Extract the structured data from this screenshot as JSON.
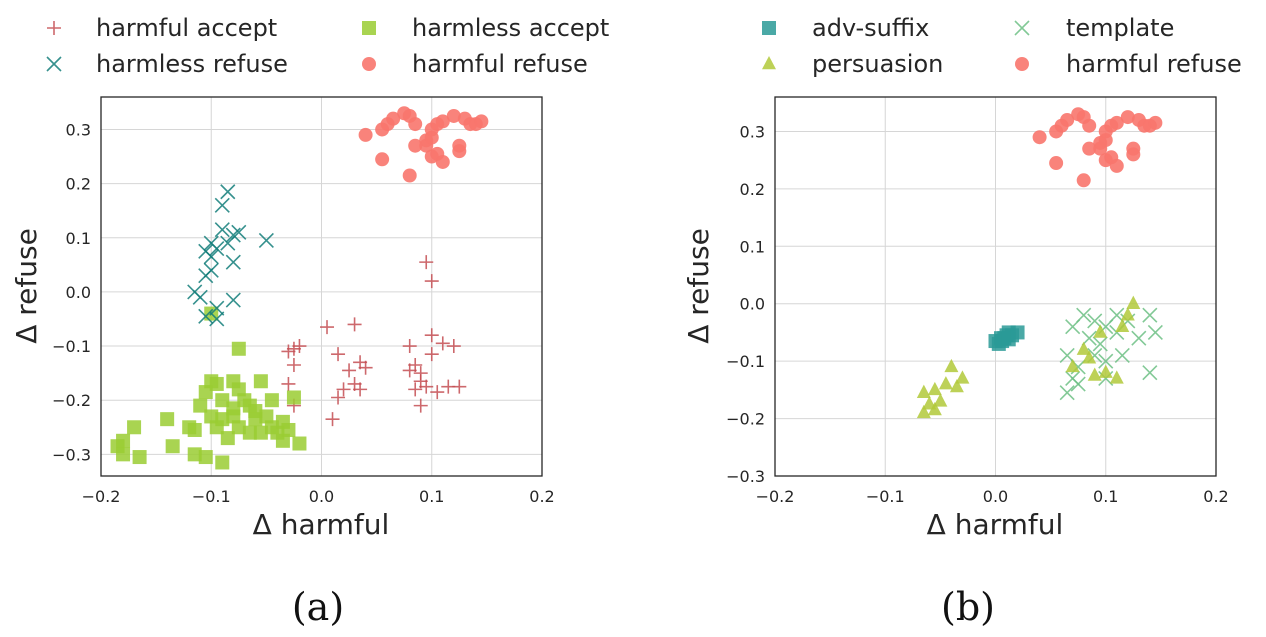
{
  "colors": {
    "harmful_accept": "#c44e52",
    "harmless_refuse": "#137e7a",
    "harmless_accept": "#9acd32",
    "harmful_refuse": "#f8766d",
    "adv_suffix": "#2a9a96",
    "persuasion": "#b2c93a",
    "template": "#6cbf84"
  },
  "chart_data": [
    {
      "type": "scatter",
      "caption": "(a)",
      "xlabel": "Δ harmful",
      "ylabel": "Δ refuse",
      "xlim": [
        -0.2,
        0.2
      ],
      "ylim": [
        -0.34,
        0.36
      ],
      "xticks": [
        -0.2,
        -0.1,
        0.0,
        0.1,
        0.2
      ],
      "xtick_labels": [
        "−0.2",
        "−0.1",
        "0.0",
        "0.1",
        "0.2"
      ],
      "yticks": [
        -0.3,
        -0.2,
        -0.1,
        0.0,
        0.1,
        0.2,
        0.3
      ],
      "ytick_labels": [
        "−0.3",
        "−0.2",
        "−0.1",
        "0.0",
        "0.1",
        "0.2",
        "0.3"
      ],
      "grid": true,
      "legend_position": "top, above plot, 2 columns",
      "series": [
        {
          "name": "harmful accept",
          "marker": "plus",
          "color": "#c44e52",
          "points": [
            [
              0.095,
              0.055
            ],
            [
              0.1,
              0.02
            ],
            [
              -0.03,
              -0.11
            ],
            [
              -0.025,
              -0.105
            ],
            [
              -0.02,
              -0.1
            ],
            [
              -0.025,
              -0.135
            ],
            [
              -0.03,
              -0.17
            ],
            [
              -0.025,
              -0.21
            ],
            [
              0.005,
              -0.065
            ],
            [
              0.03,
              -0.06
            ],
            [
              0.015,
              -0.115
            ],
            [
              0.035,
              -0.13
            ],
            [
              0.04,
              -0.14
            ],
            [
              0.025,
              -0.145
            ],
            [
              0.03,
              -0.17
            ],
            [
              0.035,
              -0.18
            ],
            [
              0.02,
              -0.18
            ],
            [
              0.015,
              -0.195
            ],
            [
              0.01,
              -0.235
            ],
            [
              0.08,
              -0.1
            ],
            [
              0.1,
              -0.08
            ],
            [
              0.1,
              -0.115
            ],
            [
              0.11,
              -0.095
            ],
            [
              0.12,
              -0.1
            ],
            [
              0.085,
              -0.135
            ],
            [
              0.09,
              -0.15
            ],
            [
              0.08,
              -0.145
            ],
            [
              0.09,
              -0.165
            ],
            [
              0.095,
              -0.175
            ],
            [
              0.085,
              -0.18
            ],
            [
              0.105,
              -0.185
            ],
            [
              0.115,
              -0.175
            ],
            [
              0.125,
              -0.175
            ],
            [
              0.09,
              -0.21
            ]
          ]
        },
        {
          "name": "harmless accept",
          "marker": "square",
          "color": "#9acd32",
          "points": [
            [
              -0.1,
              -0.04
            ],
            [
              -0.075,
              -0.105
            ],
            [
              -0.105,
              -0.185
            ],
            [
              -0.1,
              -0.165
            ],
            [
              -0.095,
              -0.17
            ],
            [
              -0.09,
              -0.2
            ],
            [
              -0.08,
              -0.165
            ],
            [
              -0.075,
              -0.18
            ],
            [
              -0.07,
              -0.2
            ],
            [
              -0.065,
              -0.21
            ],
            [
              -0.055,
              -0.165
            ],
            [
              -0.045,
              -0.2
            ],
            [
              -0.025,
              -0.195
            ],
            [
              -0.11,
              -0.21
            ],
            [
              -0.1,
              -0.23
            ],
            [
              -0.09,
              -0.235
            ],
            [
              -0.08,
              -0.23
            ],
            [
              -0.075,
              -0.25
            ],
            [
              -0.06,
              -0.235
            ],
            [
              -0.05,
              -0.23
            ],
            [
              -0.045,
              -0.25
            ],
            [
              -0.035,
              -0.24
            ],
            [
              -0.03,
              -0.255
            ],
            [
              -0.115,
              -0.255
            ],
            [
              -0.095,
              -0.25
            ],
            [
              -0.085,
              -0.27
            ],
            [
              -0.065,
              -0.26
            ],
            [
              -0.055,
              -0.26
            ],
            [
              -0.04,
              -0.26
            ],
            [
              -0.035,
              -0.275
            ],
            [
              -0.02,
              -0.28
            ],
            [
              -0.14,
              -0.235
            ],
            [
              -0.135,
              -0.285
            ],
            [
              -0.12,
              -0.25
            ],
            [
              -0.115,
              -0.3
            ],
            [
              -0.105,
              -0.305
            ],
            [
              -0.09,
              -0.315
            ],
            [
              -0.165,
              -0.305
            ],
            [
              -0.18,
              -0.3
            ],
            [
              -0.18,
              -0.275
            ],
            [
              -0.185,
              -0.285
            ],
            [
              -0.17,
              -0.25
            ],
            [
              -0.08,
              -0.215
            ],
            [
              -0.06,
              -0.22
            ]
          ]
        },
        {
          "name": "harmless refuse",
          "marker": "x",
          "color": "#137e7a",
          "points": [
            [
              -0.085,
              0.185
            ],
            [
              -0.09,
              0.16
            ],
            [
              -0.09,
              0.115
            ],
            [
              -0.08,
              0.105
            ],
            [
              -0.075,
              0.11
            ],
            [
              -0.085,
              0.09
            ],
            [
              -0.095,
              0.08
            ],
            [
              -0.1,
              0.09
            ],
            [
              -0.1,
              0.065
            ],
            [
              -0.105,
              0.075
            ],
            [
              -0.1,
              0.04
            ],
            [
              -0.105,
              0.03
            ],
            [
              -0.08,
              0.055
            ],
            [
              -0.05,
              0.095
            ],
            [
              -0.115,
              0.0
            ],
            [
              -0.11,
              -0.01
            ],
            [
              -0.095,
              -0.03
            ],
            [
              -0.105,
              -0.045
            ],
            [
              -0.095,
              -0.05
            ],
            [
              -0.08,
              -0.015
            ]
          ]
        },
        {
          "name": "harmful refuse",
          "marker": "circle",
          "color": "#f8766d",
          "points": [
            [
              0.04,
              0.29
            ],
            [
              0.055,
              0.3
            ],
            [
              0.06,
              0.31
            ],
            [
              0.065,
              0.32
            ],
            [
              0.075,
              0.33
            ],
            [
              0.08,
              0.325
            ],
            [
              0.085,
              0.31
            ],
            [
              0.095,
              0.28
            ],
            [
              0.095,
              0.27
            ],
            [
              0.1,
              0.3
            ],
            [
              0.105,
              0.31
            ],
            [
              0.11,
              0.315
            ],
            [
              0.12,
              0.325
            ],
            [
              0.13,
              0.32
            ],
            [
              0.135,
              0.31
            ],
            [
              0.14,
              0.31
            ],
            [
              0.145,
              0.315
            ],
            [
              0.085,
              0.27
            ],
            [
              0.1,
              0.25
            ],
            [
              0.105,
              0.255
            ],
            [
              0.11,
              0.24
            ],
            [
              0.125,
              0.27
            ],
            [
              0.125,
              0.26
            ],
            [
              0.055,
              0.245
            ],
            [
              0.08,
              0.215
            ],
            [
              0.1,
              0.285
            ]
          ]
        }
      ]
    },
    {
      "type": "scatter",
      "caption": "(b)",
      "xlabel": "Δ harmful",
      "ylabel": "Δ refuse",
      "xlim": [
        -0.2,
        0.2
      ],
      "ylim": [
        -0.3,
        0.36
      ],
      "xticks": [
        -0.2,
        -0.1,
        0.0,
        0.1,
        0.2
      ],
      "xtick_labels": [
        "−0.2",
        "−0.1",
        "0.0",
        "0.1",
        "0.2"
      ],
      "yticks": [
        -0.3,
        -0.2,
        -0.1,
        0.0,
        0.1,
        0.2,
        0.3
      ],
      "ytick_labels": [
        "−0.3",
        "−0.2",
        "−0.1",
        "0.0",
        "0.1",
        "0.2",
        "0.3"
      ],
      "grid": true,
      "legend_position": "top, above plot, 2 columns",
      "series": [
        {
          "name": "adv-suffix",
          "marker": "square",
          "color": "#2a9a96",
          "points": [
            [
              0.003,
              -0.07
            ],
            [
              0.006,
              -0.065
            ],
            [
              0.008,
              -0.06
            ],
            [
              0.01,
              -0.055
            ],
            [
              0.012,
              -0.05
            ],
            [
              0.015,
              -0.055
            ],
            [
              0.005,
              -0.06
            ],
            [
              0.012,
              -0.062
            ],
            [
              0.0,
              -0.065
            ],
            [
              0.02,
              -0.05
            ]
          ]
        },
        {
          "name": "template",
          "marker": "x",
          "color": "#6cbf84",
          "points": [
            [
              0.07,
              -0.04
            ],
            [
              0.08,
              -0.02
            ],
            [
              0.09,
              -0.03
            ],
            [
              0.1,
              -0.04
            ],
            [
              0.11,
              -0.02
            ],
            [
              0.12,
              -0.03
            ],
            [
              0.14,
              -0.02
            ],
            [
              0.085,
              -0.06
            ],
            [
              0.095,
              -0.07
            ],
            [
              0.11,
              -0.05
            ],
            [
              0.13,
              -0.06
            ],
            [
              0.145,
              -0.05
            ],
            [
              0.065,
              -0.09
            ],
            [
              0.075,
              -0.11
            ],
            [
              0.09,
              -0.09
            ],
            [
              0.1,
              -0.1
            ],
            [
              0.115,
              -0.09
            ],
            [
              0.07,
              -0.13
            ],
            [
              0.075,
              -0.14
            ],
            [
              0.065,
              -0.155
            ],
            [
              0.1,
              -0.13
            ],
            [
              0.14,
              -0.12
            ]
          ]
        },
        {
          "name": "persuasion",
          "marker": "triangle",
          "color": "#b2c93a",
          "points": [
            [
              -0.065,
              -0.155
            ],
            [
              -0.055,
              -0.15
            ],
            [
              -0.045,
              -0.14
            ],
            [
              -0.04,
              -0.11
            ],
            [
              -0.03,
              -0.13
            ],
            [
              -0.05,
              -0.17
            ],
            [
              -0.055,
              -0.185
            ],
            [
              -0.06,
              -0.175
            ],
            [
              -0.065,
              -0.19
            ],
            [
              -0.035,
              -0.145
            ],
            [
              0.08,
              -0.08
            ],
            [
              0.085,
              -0.095
            ],
            [
              0.095,
              -0.05
            ],
            [
              0.1,
              -0.12
            ],
            [
              0.11,
              -0.13
            ],
            [
              0.12,
              -0.02
            ],
            [
              0.125,
              0.0
            ],
            [
              0.115,
              -0.04
            ],
            [
              0.07,
              -0.11
            ],
            [
              0.09,
              -0.125
            ]
          ]
        },
        {
          "name": "harmful refuse",
          "marker": "circle",
          "color": "#f8766d",
          "points": [
            [
              0.04,
              0.29
            ],
            [
              0.055,
              0.3
            ],
            [
              0.06,
              0.31
            ],
            [
              0.065,
              0.32
            ],
            [
              0.075,
              0.33
            ],
            [
              0.08,
              0.325
            ],
            [
              0.085,
              0.31
            ],
            [
              0.095,
              0.28
            ],
            [
              0.095,
              0.27
            ],
            [
              0.1,
              0.3
            ],
            [
              0.105,
              0.31
            ],
            [
              0.11,
              0.315
            ],
            [
              0.12,
              0.325
            ],
            [
              0.13,
              0.32
            ],
            [
              0.135,
              0.31
            ],
            [
              0.14,
              0.31
            ],
            [
              0.145,
              0.315
            ],
            [
              0.085,
              0.27
            ],
            [
              0.1,
              0.25
            ],
            [
              0.105,
              0.255
            ],
            [
              0.11,
              0.24
            ],
            [
              0.125,
              0.27
            ],
            [
              0.125,
              0.26
            ],
            [
              0.055,
              0.245
            ],
            [
              0.08,
              0.215
            ],
            [
              0.1,
              0.285
            ]
          ]
        }
      ]
    }
  ]
}
